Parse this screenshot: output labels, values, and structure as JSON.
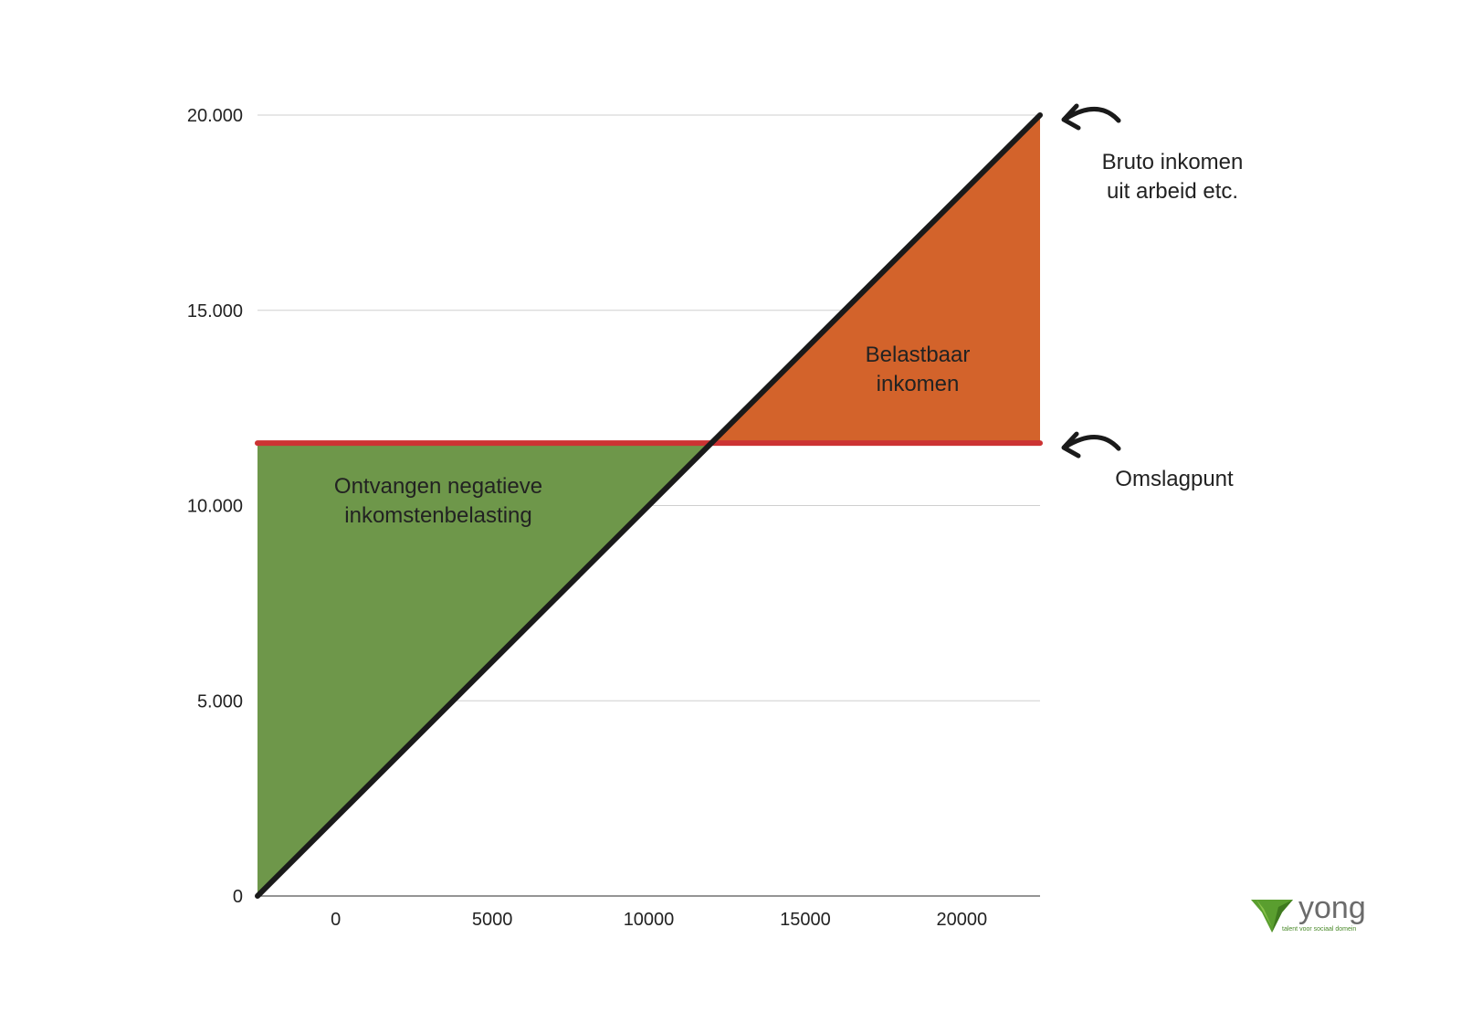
{
  "chart_data": {
    "type": "area",
    "title": "",
    "xlabel": "",
    "ylabel": "",
    "xlim": [
      -2500,
      22500
    ],
    "ylim": [
      0,
      20000
    ],
    "x_ticks": [
      0,
      5000,
      10000,
      15000,
      20000
    ],
    "x_tick_labels": [
      "0",
      "5000",
      "10000",
      "15000",
      "20000"
    ],
    "y_ticks": [
      0,
      5000,
      10000,
      15000,
      20000
    ],
    "y_tick_labels": [
      "0",
      "5.000",
      "10.000",
      "15.000",
      "20.000"
    ],
    "grid": "horizontal",
    "threshold": 11600,
    "income_line": {
      "x": [
        -2500,
        22500
      ],
      "y": [
        0,
        20000
      ],
      "color": "#1a1a1a"
    },
    "turning_line": {
      "x": [
        -2500,
        22500
      ],
      "y": [
        11600,
        11600
      ],
      "color": "#cc3333"
    },
    "regions": [
      {
        "label": "Ontvangen negatieve\ninkomstenbelasting",
        "color": "#6e974a",
        "x": [
          -2500,
          -2500,
          12000
        ],
        "y": [
          0,
          11600,
          11600
        ]
      },
      {
        "label": "Belastbaar\ninkomen",
        "color": "#d3632b",
        "x": [
          12000,
          22500,
          22500
        ],
        "y": [
          11600,
          20000,
          11600
        ]
      }
    ],
    "annotations": [
      {
        "text": "Bruto inkomen\nuit arbeid etc.",
        "points_to": [
          22500,
          20000
        ]
      },
      {
        "text": "Omslagpunt",
        "points_to": [
          22500,
          11600
        ]
      }
    ]
  },
  "logo": {
    "word": "yong",
    "tagline": "talent voor sociaal domein"
  }
}
